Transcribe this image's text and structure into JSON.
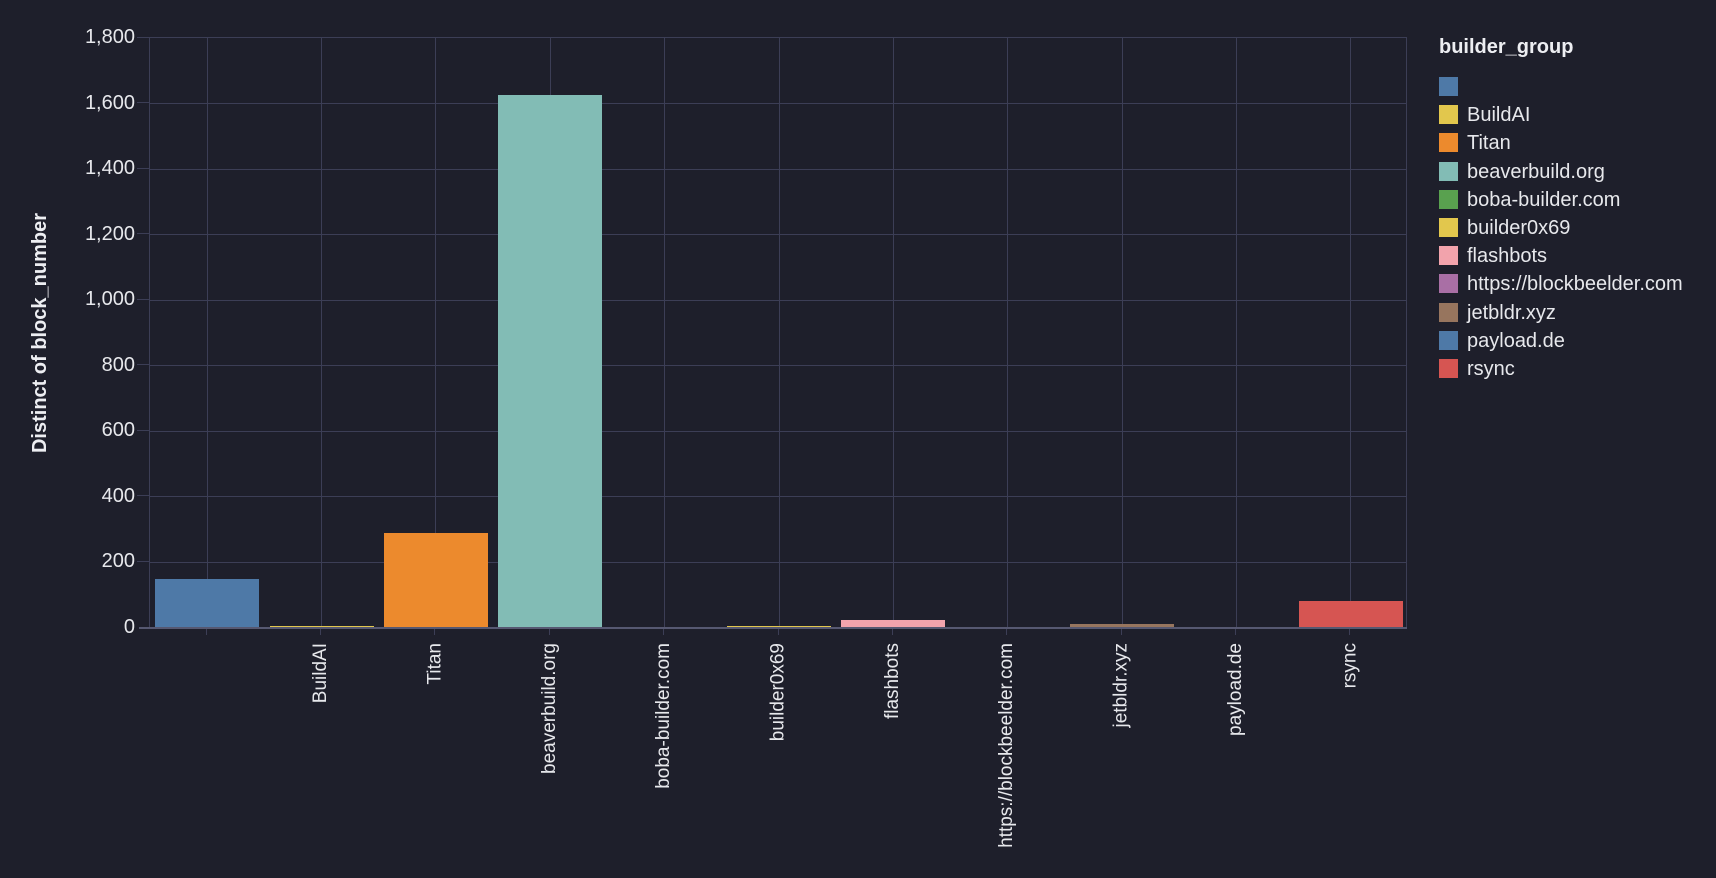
{
  "chart_data": {
    "type": "bar",
    "categories": [
      "",
      "BuildAI",
      "Titan",
      "beaverbuild.org",
      "boba-builder.com",
      "builder0x69",
      "flashbots",
      "https://blockbeelder.com",
      "jetbldr.xyz",
      "payload.de",
      "rsync"
    ],
    "values": [
      148,
      5,
      290,
      1627,
      4,
      6,
      23,
      3,
      13,
      2,
      81
    ],
    "colors": [
      "#4e79a7",
      "#e2c74d",
      "#ec8a2d",
      "#82bcb5",
      "#59a14f",
      "#e2c74d",
      "#f2a3ac",
      "#a96fa5",
      "#97755e",
      "#4e79a7",
      "#d65552"
    ],
    "xlabel": "",
    "ylabel": "Distinct of block_number",
    "ylim": [
      0,
      1800
    ],
    "ytick_step": 200,
    "ytick_labels": [
      "0",
      "200",
      "400",
      "600",
      "800",
      "1,000",
      "1,200",
      "1,400",
      "1,600",
      "1,800"
    ],
    "grid": true,
    "legend": {
      "title": "builder_group",
      "position": "right",
      "entries": [
        {
          "label": "",
          "color": "#4e79a7"
        },
        {
          "label": "BuildAI",
          "color": "#e2c74d"
        },
        {
          "label": "Titan",
          "color": "#ec8a2d"
        },
        {
          "label": "beaverbuild.org",
          "color": "#82bcb5"
        },
        {
          "label": "boba-builder.com",
          "color": "#59a14f"
        },
        {
          "label": "builder0x69",
          "color": "#e2c74d"
        },
        {
          "label": "flashbots",
          "color": "#f2a3ac"
        },
        {
          "label": "https://blockbeelder.com",
          "color": "#a96fa5"
        },
        {
          "label": "jetbldr.xyz",
          "color": "#97755e"
        },
        {
          "label": "payload.de",
          "color": "#4e79a7"
        },
        {
          "label": "rsync",
          "color": "#d65552"
        }
      ]
    },
    "colors_meta": {
      "background": "#1e1f2b",
      "grid": "#3c3e56",
      "axis": "#565871",
      "text": "#e7e8ec"
    }
  }
}
